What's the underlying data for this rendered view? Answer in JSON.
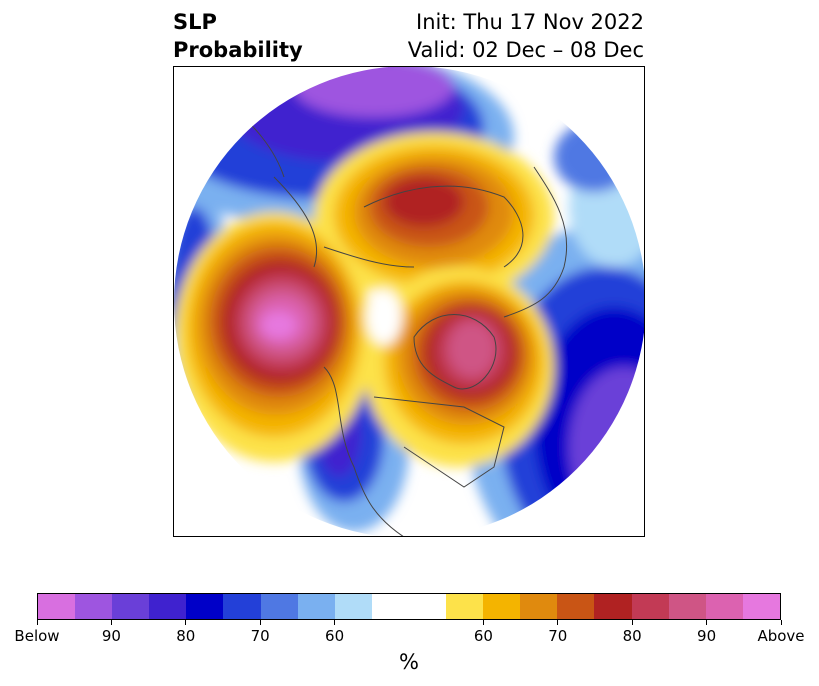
{
  "title": {
    "left_line1": "SLP",
    "left_line2": "Probability",
    "right_line1": "Init: Thu 17 Nov 2022",
    "right_line2": "Valid: 02 Dec – 08 Dec"
  },
  "map": {
    "projection": "polar stereographic, north pole",
    "features": [
      {
        "name": "north-pacific-above",
        "category": "Above",
        "peak_percent": 90
      },
      {
        "name": "greenland-above",
        "category": "Above",
        "peak_percent": 90
      },
      {
        "name": "arctic-siberia-above",
        "category": "Above",
        "peak_percent": 80
      },
      {
        "name": "eastern-siberia-below",
        "category": "Below",
        "peak_percent": 90
      },
      {
        "name": "western-us-below",
        "category": "Below",
        "peak_percent": 80
      },
      {
        "name": "north-atlantic-below",
        "category": "Below",
        "peak_percent": 80
      },
      {
        "name": "west-pacific-below",
        "category": "Below",
        "peak_percent": 70
      }
    ]
  },
  "colorbar": {
    "colors": [
      "#d86fe0",
      "#9e55e0",
      "#6a3fd8",
      "#3f22cf",
      "#0000c8",
      "#2340d8",
      "#4f78e3",
      "#7ab0f0",
      "#b0dcf8",
      "#ffffff",
      "#ffffff",
      "#fde24a",
      "#f4b400",
      "#e08a0e",
      "#c95515",
      "#b02222",
      "#c23a55",
      "#cf5585",
      "#dc62b0",
      "#e678df"
    ],
    "tick_labels": [
      "Below",
      "90",
      "80",
      "70",
      "60",
      "60",
      "70",
      "80",
      "90",
      "Above"
    ],
    "unit": "%"
  }
}
